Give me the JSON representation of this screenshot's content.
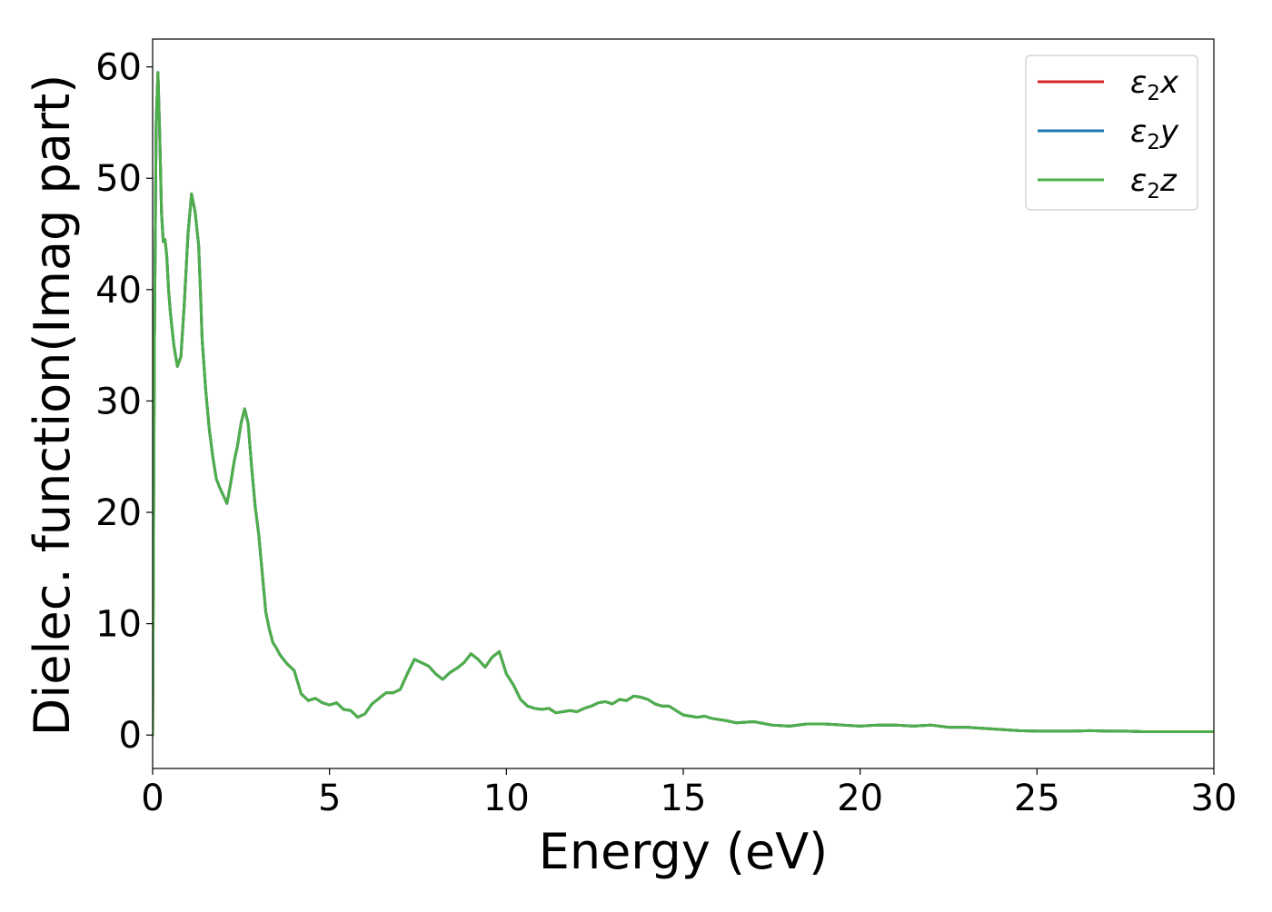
{
  "chart_data": {
    "type": "line",
    "title": "",
    "xlabel": "Energy (eV)",
    "ylabel": "Dielec. function(Imag part)",
    "xlim": [
      0,
      30
    ],
    "ylim": [
      -3,
      62.5
    ],
    "xticks": [
      0,
      5,
      10,
      15,
      20,
      25,
      30
    ],
    "yticks": [
      0,
      10,
      20,
      30,
      40,
      50,
      60
    ],
    "grid": false,
    "legend_position": "upper-right",
    "x": [
      0,
      0.05,
      0.1,
      0.15,
      0.2,
      0.25,
      0.3,
      0.35,
      0.4,
      0.45,
      0.5,
      0.55,
      0.6,
      0.7,
      0.8,
      0.9,
      1.0,
      1.1,
      1.2,
      1.3,
      1.35,
      1.4,
      1.5,
      1.6,
      1.7,
      1.8,
      1.9,
      2.0,
      2.1,
      2.2,
      2.3,
      2.4,
      2.5,
      2.6,
      2.7,
      2.8,
      2.9,
      3.0,
      3.1,
      3.2,
      3.3,
      3.4,
      3.5,
      3.6,
      3.8,
      4.0,
      4.2,
      4.4,
      4.6,
      4.8,
      5.0,
      5.2,
      5.4,
      5.6,
      5.8,
      6.0,
      6.2,
      6.4,
      6.6,
      6.8,
      7.0,
      7.2,
      7.4,
      7.6,
      7.8,
      8.0,
      8.2,
      8.4,
      8.6,
      8.8,
      9.0,
      9.2,
      9.4,
      9.6,
      9.8,
      10.0,
      10.2,
      10.4,
      10.6,
      10.8,
      11.0,
      11.2,
      11.4,
      11.6,
      11.8,
      12.0,
      12.2,
      12.4,
      12.6,
      12.8,
      13.0,
      13.2,
      13.4,
      13.6,
      13.8,
      14.0,
      14.2,
      14.4,
      14.6,
      14.8,
      15.0,
      15.2,
      15.4,
      15.6,
      15.8,
      16.0,
      16.2,
      16.5,
      17.0,
      17.5,
      18.0,
      18.5,
      19.0,
      19.5,
      20.0,
      20.5,
      21.0,
      21.5,
      22.0,
      22.5,
      23.0,
      23.5,
      24.0,
      24.5,
      25.0,
      25.5,
      26.0,
      26.5,
      27.0,
      27.5,
      28.0,
      28.5,
      29.0,
      29.5,
      30.0
    ],
    "series": [
      {
        "name": "ε2x",
        "color": "#d62728",
        "values": [
          0,
          35,
          55,
          59.5,
          54,
          47,
          44.3,
          44.5,
          43,
          40,
          38,
          36.5,
          35,
          33.1,
          34,
          39,
          45,
          48.6,
          47,
          44,
          40,
          35.5,
          31,
          27.5,
          25,
          23,
          22.2,
          21.5,
          20.8,
          22.5,
          24.5,
          26,
          28,
          29.3,
          28,
          24,
          20.5,
          18,
          14.5,
          11,
          9.5,
          8.3,
          7.8,
          7.2,
          6.4,
          5.8,
          3.7,
          3.1,
          3.3,
          2.9,
          2.7,
          2.9,
          2.3,
          2.2,
          1.6,
          1.9,
          2.8,
          3.3,
          3.8,
          3.8,
          4.1,
          5.5,
          6.8,
          6.5,
          6.2,
          5.5,
          5.0,
          5.6,
          6.0,
          6.5,
          7.3,
          6.8,
          6.1,
          7.0,
          7.5,
          5.5,
          4.5,
          3.2,
          2.6,
          2.4,
          2.3,
          2.4,
          2.0,
          2.1,
          2.2,
          2.1,
          2.4,
          2.6,
          2.9,
          3.0,
          2.8,
          3.2,
          3.1,
          3.5,
          3.4,
          3.2,
          2.8,
          2.6,
          2.6,
          2.2,
          1.8,
          1.7,
          1.6,
          1.7,
          1.5,
          1.4,
          1.3,
          1.1,
          1.2,
          0.9,
          0.8,
          1.0,
          1.0,
          0.9,
          0.8,
          0.9,
          0.9,
          0.8,
          0.9,
          0.7,
          0.7,
          0.6,
          0.5,
          0.4,
          0.35,
          0.35,
          0.35,
          0.4,
          0.35,
          0.35,
          0.3,
          0.3,
          0.3,
          0.3,
          0.3
        ]
      },
      {
        "name": "ε2y",
        "color": "#1f77b4",
        "values": [
          0,
          35,
          55,
          59.5,
          54,
          47,
          44.3,
          44.5,
          43,
          40,
          38,
          36.5,
          35,
          33.1,
          34,
          39,
          45,
          48.6,
          47,
          44,
          40,
          35.5,
          31,
          27.5,
          25,
          23,
          22.2,
          21.5,
          20.8,
          22.5,
          24.5,
          26,
          28,
          29.3,
          28,
          24,
          20.5,
          18,
          14.5,
          11,
          9.5,
          8.3,
          7.8,
          7.2,
          6.4,
          5.8,
          3.7,
          3.1,
          3.3,
          2.9,
          2.7,
          2.9,
          2.3,
          2.2,
          1.6,
          1.9,
          2.8,
          3.3,
          3.8,
          3.8,
          4.1,
          5.5,
          6.8,
          6.5,
          6.2,
          5.5,
          5.0,
          5.6,
          6.0,
          6.5,
          7.3,
          6.8,
          6.1,
          7.0,
          7.5,
          5.5,
          4.5,
          3.2,
          2.6,
          2.4,
          2.3,
          2.4,
          2.0,
          2.1,
          2.2,
          2.1,
          2.4,
          2.6,
          2.9,
          3.0,
          2.8,
          3.2,
          3.1,
          3.5,
          3.4,
          3.2,
          2.8,
          2.6,
          2.6,
          2.2,
          1.8,
          1.7,
          1.6,
          1.7,
          1.5,
          1.4,
          1.3,
          1.1,
          1.2,
          0.9,
          0.8,
          1.0,
          1.0,
          0.9,
          0.8,
          0.9,
          0.9,
          0.8,
          0.9,
          0.7,
          0.7,
          0.6,
          0.5,
          0.4,
          0.35,
          0.35,
          0.35,
          0.4,
          0.35,
          0.35,
          0.3,
          0.3,
          0.3,
          0.3,
          0.3
        ]
      },
      {
        "name": "ε2z",
        "color": "#4daf4a",
        "values": [
          0,
          35,
          55,
          59.5,
          54,
          47,
          44.3,
          44.5,
          43,
          40,
          38,
          36.5,
          35,
          33.1,
          34,
          39,
          45,
          48.6,
          47,
          44,
          40,
          35.5,
          31,
          27.5,
          25,
          23,
          22.2,
          21.5,
          20.8,
          22.5,
          24.5,
          26,
          28,
          29.3,
          28,
          24,
          20.5,
          18,
          14.5,
          11,
          9.5,
          8.3,
          7.8,
          7.2,
          6.4,
          5.8,
          3.7,
          3.1,
          3.3,
          2.9,
          2.7,
          2.9,
          2.3,
          2.2,
          1.6,
          1.9,
          2.8,
          3.3,
          3.8,
          3.8,
          4.1,
          5.5,
          6.8,
          6.5,
          6.2,
          5.5,
          5.0,
          5.6,
          6.0,
          6.5,
          7.3,
          6.8,
          6.1,
          7.0,
          7.5,
          5.5,
          4.5,
          3.2,
          2.6,
          2.4,
          2.3,
          2.4,
          2.0,
          2.1,
          2.2,
          2.1,
          2.4,
          2.6,
          2.9,
          3.0,
          2.8,
          3.2,
          3.1,
          3.5,
          3.4,
          3.2,
          2.8,
          2.6,
          2.6,
          2.2,
          1.8,
          1.7,
          1.6,
          1.7,
          1.5,
          1.4,
          1.3,
          1.1,
          1.2,
          0.9,
          0.8,
          1.0,
          1.0,
          0.9,
          0.8,
          0.9,
          0.9,
          0.8,
          0.9,
          0.7,
          0.7,
          0.6,
          0.5,
          0.4,
          0.35,
          0.35,
          0.35,
          0.4,
          0.35,
          0.35,
          0.3,
          0.3,
          0.3,
          0.3,
          0.3
        ]
      }
    ],
    "legend": [
      {
        "symbol": "ε",
        "subscript": "2",
        "axis": "x",
        "color": "#d62728"
      },
      {
        "symbol": "ε",
        "subscript": "2",
        "axis": "y",
        "color": "#1f77b4"
      },
      {
        "symbol": "ε",
        "subscript": "2",
        "axis": "z",
        "color": "#4daf4a"
      }
    ]
  }
}
